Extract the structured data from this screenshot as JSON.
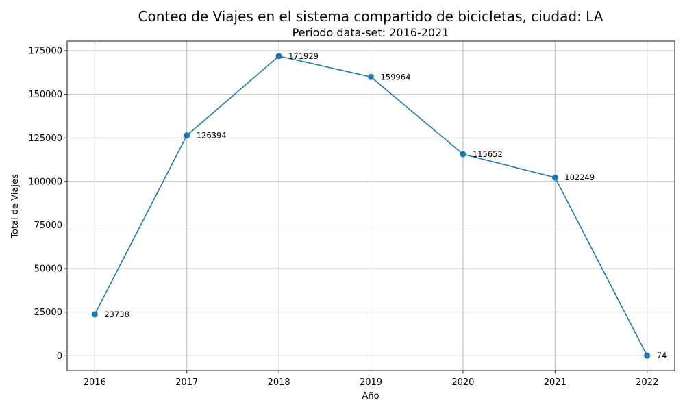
{
  "chart_data": {
    "type": "line",
    "title": "Conteo de Viajes en el sistema compartido de bicicletas, ciudad: LA",
    "subtitle": "Periodo data-set: 2016-2021",
    "xlabel": "Año",
    "ylabel": "Total de Viajes",
    "x": [
      2016,
      2017,
      2018,
      2019,
      2020,
      2021,
      2022
    ],
    "series": [
      {
        "values": [
          23738,
          126394,
          171929,
          159964,
          115652,
          102249,
          74
        ],
        "color": "#1f77b4",
        "marker": "circle"
      }
    ],
    "data_labels": [
      "23738",
      "126394",
      "171929",
      "159964",
      "115652",
      "102249",
      "74"
    ],
    "xlim": [
      2015.7,
      2022.3
    ],
    "ylim": [
      -8518,
      180522
    ],
    "xticks": [
      "2016",
      "2017",
      "2018",
      "2019",
      "2020",
      "2021",
      "2022"
    ],
    "yticks": [
      "0",
      "25000",
      "50000",
      "75000",
      "100000",
      "125000",
      "150000",
      "175000"
    ],
    "grid": true,
    "legend": "none"
  }
}
